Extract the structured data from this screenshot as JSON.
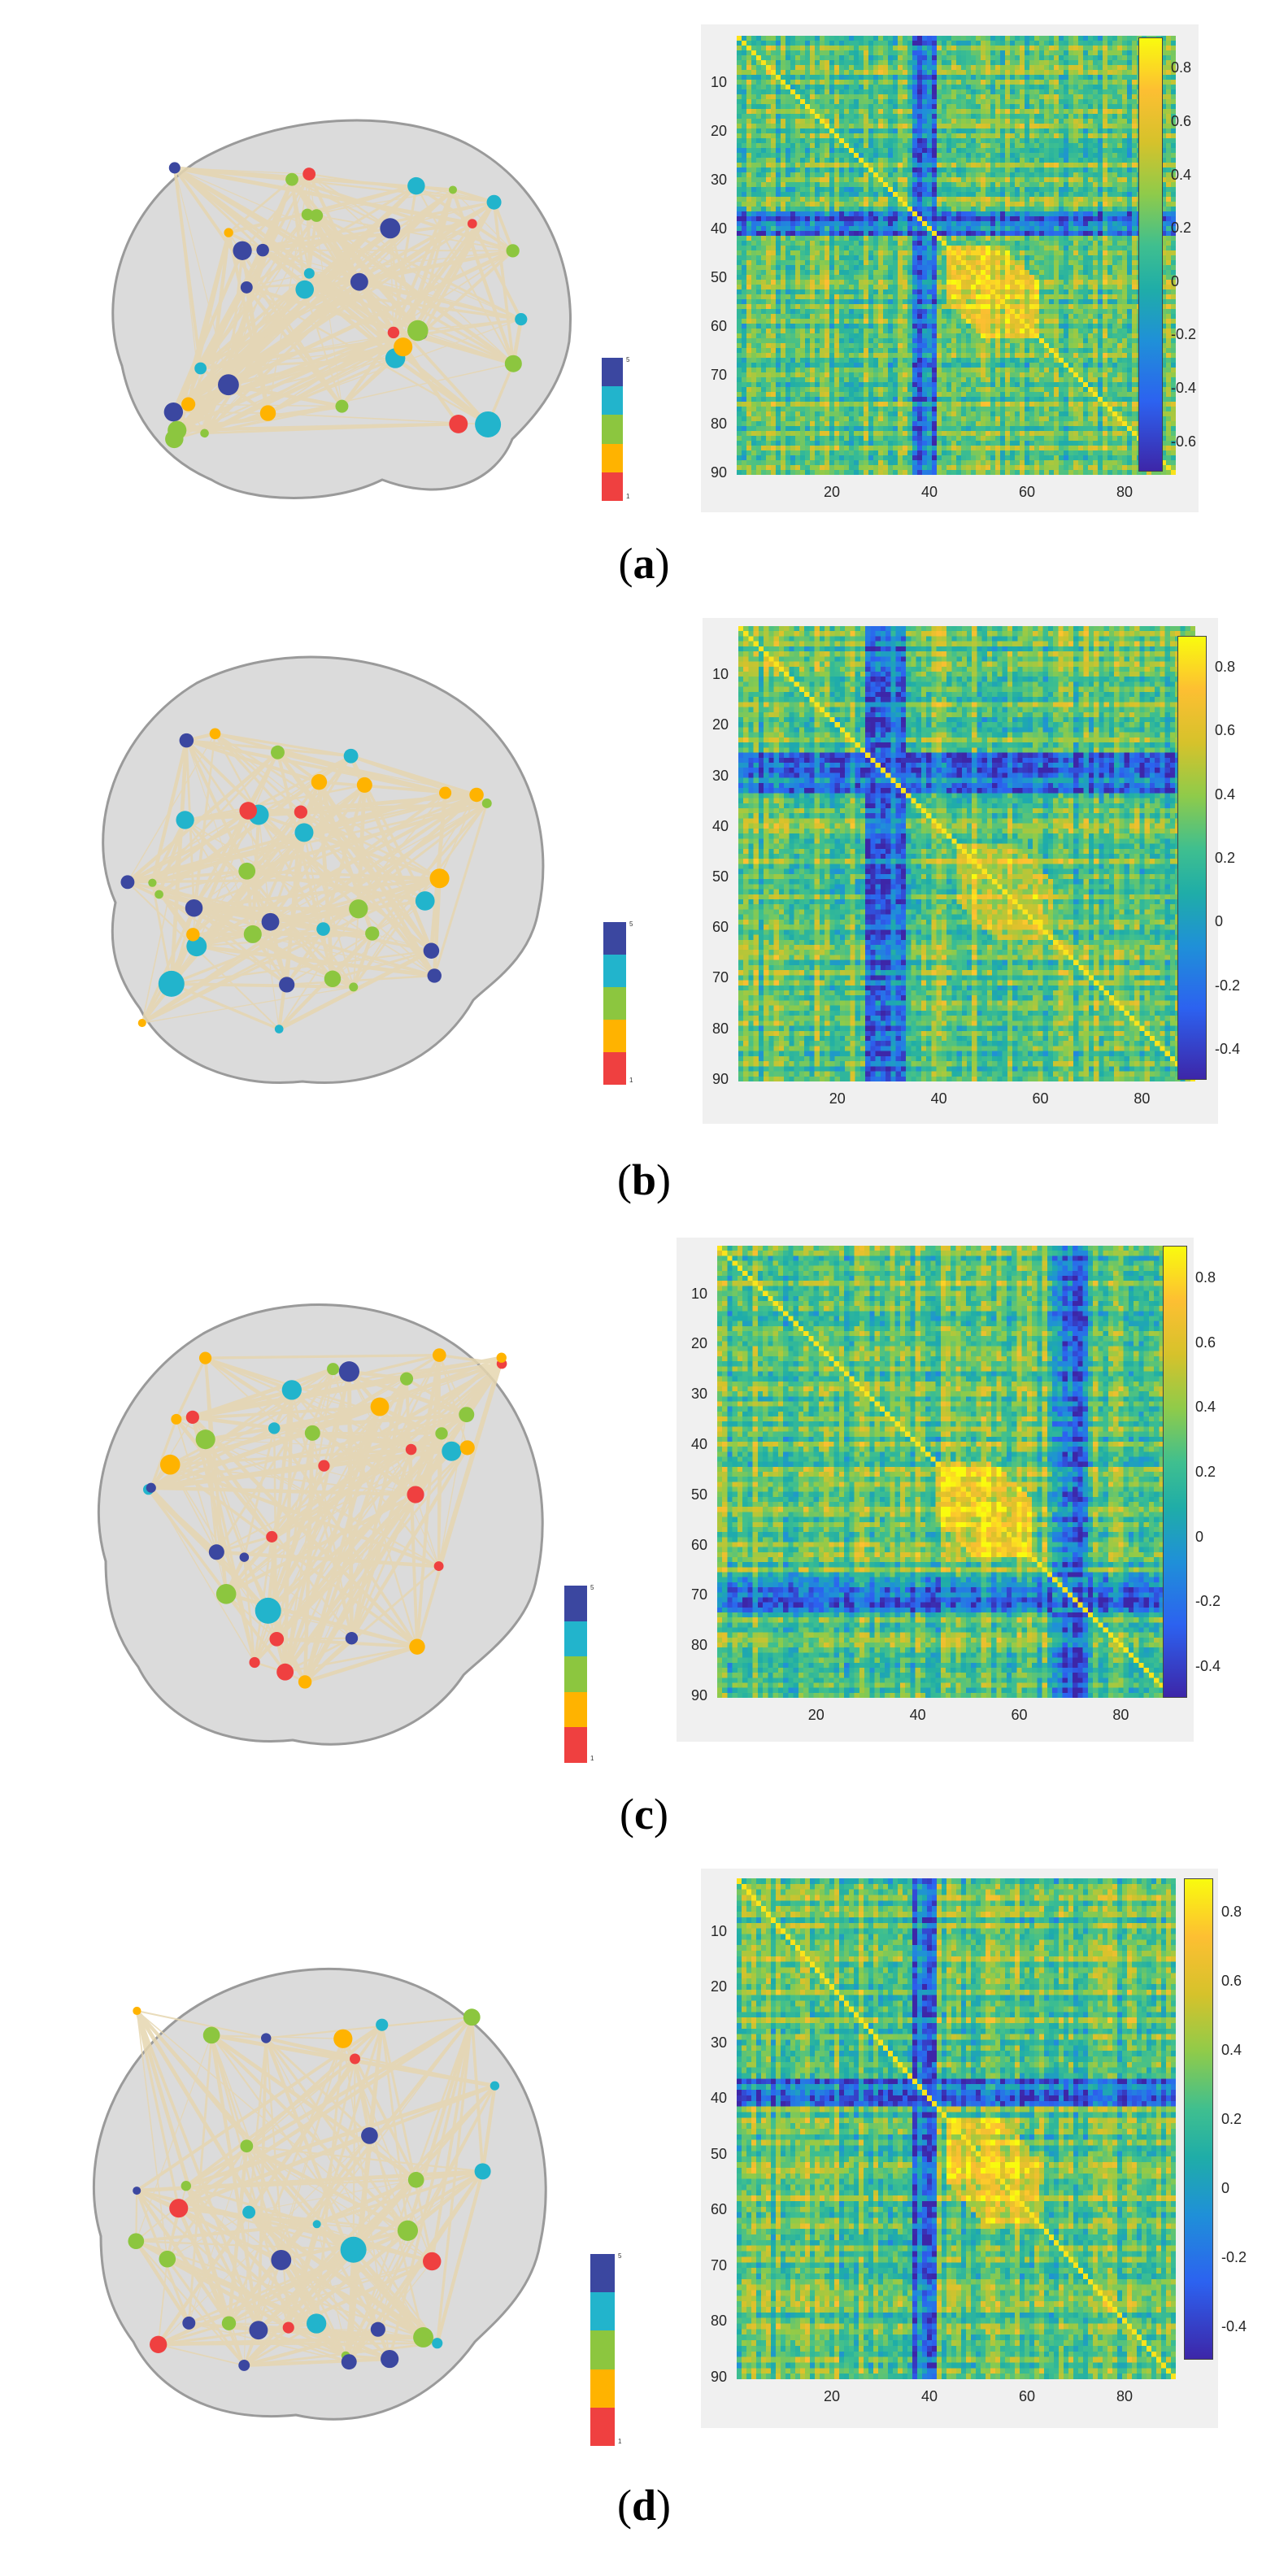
{
  "panels": [
    {
      "letter": "a",
      "legend": {
        "max": "5",
        "min": "1"
      },
      "axis": {
        "y_ticks": [
          "10",
          "20",
          "30",
          "40",
          "50",
          "60",
          "70",
          "80",
          "90"
        ],
        "x_ticks": [
          "20",
          "40",
          "60",
          "80"
        ]
      },
      "colorbar": {
        "ticks": [
          "0.8",
          "0.6",
          "0.4",
          "0.2",
          "0",
          "-0.2",
          "-0.4",
          "-0.6"
        ]
      }
    },
    {
      "letter": "b",
      "legend": {
        "max": "5",
        "min": "1"
      },
      "axis": {
        "y_ticks": [
          "10",
          "20",
          "30",
          "40",
          "50",
          "60",
          "70",
          "80",
          "90"
        ],
        "x_ticks": [
          "20",
          "40",
          "60",
          "80"
        ]
      },
      "colorbar": {
        "ticks": [
          "0.8",
          "0.6",
          "0.4",
          "0.2",
          "0",
          "-0.2",
          "-0.4"
        ]
      }
    },
    {
      "letter": "c",
      "legend": {
        "max": "5",
        "min": "1"
      },
      "axis": {
        "y_ticks": [
          "10",
          "20",
          "30",
          "40",
          "50",
          "60",
          "70",
          "80",
          "90"
        ],
        "x_ticks": [
          "20",
          "40",
          "60",
          "80"
        ]
      },
      "colorbar": {
        "ticks": [
          "0.8",
          "0.6",
          "0.4",
          "0.2",
          "0",
          "-0.2",
          "-0.4"
        ]
      }
    },
    {
      "letter": "d",
      "legend": {
        "max": "5",
        "min": "1"
      },
      "axis": {
        "y_ticks": [
          "10",
          "20",
          "30",
          "40",
          "50",
          "60",
          "70",
          "80",
          "90"
        ],
        "x_ticks": [
          "20",
          "40",
          "60",
          "80"
        ]
      },
      "colorbar": {
        "ticks": [
          "0.8",
          "0.6",
          "0.4",
          "0.2",
          "0",
          "-0.2",
          "-0.4"
        ]
      }
    }
  ],
  "colors": {
    "node_levels": [
      "#3b47a0",
      "#22b4cc",
      "#8cc63f",
      "#ffb300",
      "#ef4040"
    ],
    "edge": "#e6d6b0",
    "brain": "#b8b8b8",
    "heat_low": "#3d26a8",
    "heat_high": "#f9fb0e"
  }
}
